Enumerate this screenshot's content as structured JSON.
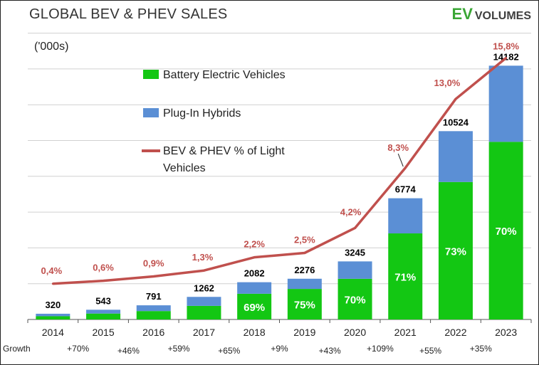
{
  "title": "GLOBAL BEV & PHEV SALES",
  "logo": {
    "ev": "EV",
    "volumes": "VOLUMES"
  },
  "chart_data": {
    "type": "bar",
    "stacked": true,
    "title": "GLOBAL BEV & PHEV SALES",
    "units": "('000s)",
    "categories": [
      "2014",
      "2015",
      "2016",
      "2017",
      "2018",
      "2019",
      "2020",
      "2021",
      "2022",
      "2023"
    ],
    "totals": [
      320,
      543,
      791,
      1262,
      2082,
      2276,
      3245,
      6774,
      10524,
      14182
    ],
    "series": [
      {
        "name": "Battery Electric Vehicles",
        "color": "#13c713",
        "values": [
          180,
          330,
          470,
          760,
          1437,
          1707,
          2272,
          4810,
          7683,
          9927
        ]
      },
      {
        "name": "Plug-In Hybrids",
        "color": "#5b8fd5",
        "values": [
          140,
          213,
          321,
          502,
          645,
          569,
          973,
          1964,
          2841,
          4255
        ]
      }
    ],
    "bev_share_labels": [
      "",
      "",
      "",
      "",
      "69%",
      "75%",
      "70%",
      "71%",
      "73%",
      "70%"
    ],
    "line_series": {
      "name": "BEV & PHEV % of Light Vehicles",
      "color": "#c0504d",
      "values": [
        0.4,
        0.6,
        0.9,
        1.3,
        2.2,
        2.5,
        4.2,
        8.3,
        13.0,
        15.8
      ],
      "labels": [
        "0,4%",
        "0,6%",
        "0,9%",
        "1,3%",
        "2,2%",
        "2,5%",
        "4,2%",
        "8,3%",
        "13,0%",
        "15,8%"
      ]
    },
    "growth_title": "Growth",
    "growth": [
      "+70%",
      "+46%",
      "+59%",
      "+65%",
      "+9%",
      "+43%",
      "+109%",
      "+55%",
      "+35%"
    ],
    "ylim": [
      0,
      16000
    ],
    "grid": true,
    "legend_placement": "top-left"
  }
}
